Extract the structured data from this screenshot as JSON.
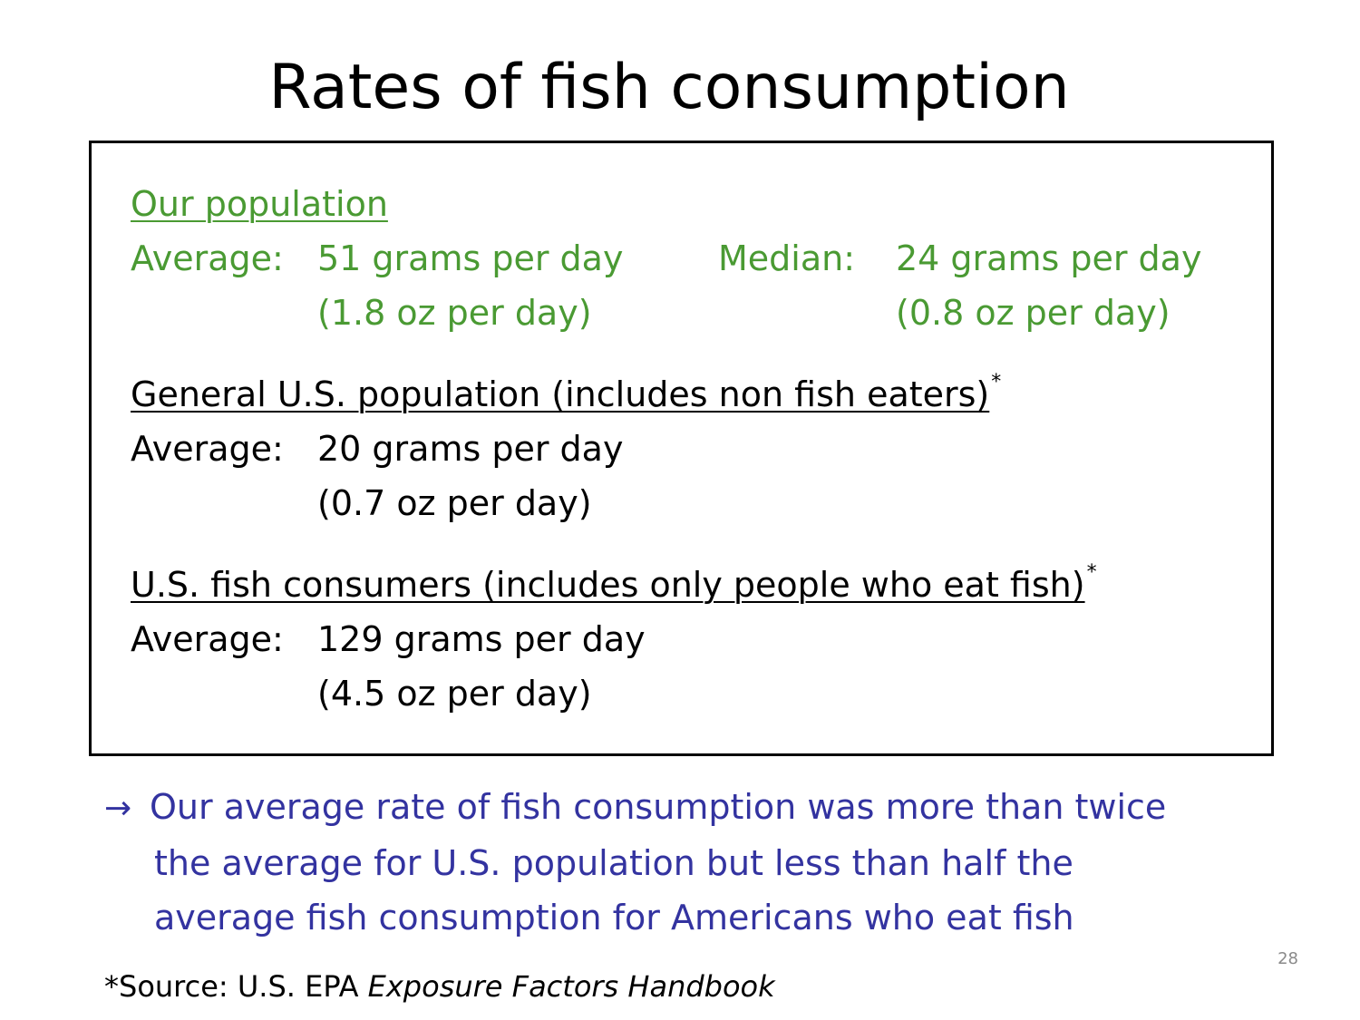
{
  "title": "Rates of fish consumption",
  "our_population": {
    "heading": "Our population",
    "avg_label": "Average:",
    "avg_grams": "51 grams per day",
    "avg_oz": "(1.8 oz per day)",
    "median_label": "Median:",
    "median_grams": "24 grams per day",
    "median_oz": "(0.8 oz per day)"
  },
  "general_us": {
    "heading": "General U.S. population (includes non fish eaters)",
    "footnote_mark": "*",
    "avg_label": "Average:",
    "avg_grams": "20 grams per day",
    "avg_oz": "(0.7 oz per day)"
  },
  "us_fish_consumers": {
    "heading": "U.S. fish consumers (includes only people who eat fish)",
    "footnote_mark": "*",
    "avg_label": "Average:",
    "avg_grams": "129 grams per day",
    "avg_oz": "(4.5 oz per day)"
  },
  "conclusion": {
    "arrow": "→",
    "line1": "Our average rate of fish consumption was more than twice",
    "line2": "the average for U.S. population but less than half the",
    "line3": "average fish consumption for Americans who eat fish"
  },
  "source": {
    "prefix": "*Source: U.S. EPA ",
    "title": "Exposure Factors Handbook"
  },
  "page_number": "28",
  "colors": {
    "green": "#4a9a33",
    "blue": "#3333a0",
    "page_number": "#8a8a8a"
  }
}
